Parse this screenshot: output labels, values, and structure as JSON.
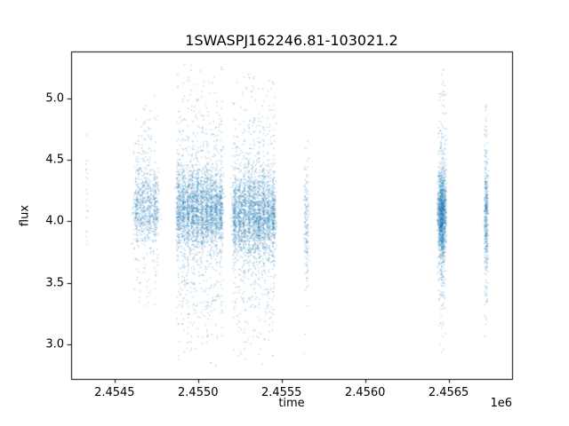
{
  "chart_data": {
    "type": "scatter",
    "title": "1SWASPJ162246.81-103021.2",
    "xlabel": "time",
    "ylabel": "flux",
    "x_offset_text": "1e6",
    "xlim": [
      2454240,
      2456880
    ],
    "ylim": [
      2.72,
      5.38
    ],
    "xticks": [
      2454500,
      2455000,
      2455500,
      2456000,
      2456500
    ],
    "xtick_labels": [
      "2.4545",
      "2.4550",
      "2.4555",
      "2.4560",
      "2.4565"
    ],
    "yticks": [
      3.0,
      3.5,
      4.0,
      4.5,
      5.0
    ],
    "ytick_labels": [
      "3.0",
      "3.5",
      "4.0",
      "4.5",
      "5.0"
    ],
    "grid": false,
    "legend": "none",
    "point_color": "#1f77b4",
    "point_alpha": 0.35,
    "point_size": 1.3,
    "clusters": [
      {
        "t": 2454335,
        "hw": 10,
        "n": 20,
        "cols": 0,
        "core_frac": 0.6,
        "mean": 4.15,
        "core_sigma": 0.22,
        "tail_sigma": 0.35,
        "fmin": 3.8,
        "fmax": 4.75
      },
      {
        "t": 2454690,
        "hw": 75,
        "n": 900,
        "cols": 4,
        "core_frac": 0.72,
        "mean": 4.12,
        "core_sigma": 0.14,
        "tail_sigma": 0.42,
        "fmin": 3.3,
        "fmax": 5.08
      },
      {
        "t": 2455010,
        "hw": 140,
        "n": 3200,
        "cols": 10,
        "core_frac": 0.7,
        "mean": 4.1,
        "core_sigma": 0.16,
        "tail_sigma": 0.55,
        "fmin": 2.82,
        "fmax": 5.28
      },
      {
        "t": 2455335,
        "hw": 130,
        "n": 3000,
        "cols": 9,
        "core_frac": 0.7,
        "mean": 4.05,
        "core_sigma": 0.17,
        "tail_sigma": 0.55,
        "fmin": 2.8,
        "fmax": 5.22
      },
      {
        "t": 2455650,
        "hw": 18,
        "n": 170,
        "cols": 0,
        "core_frac": 0.6,
        "mean": 4.0,
        "core_sigma": 0.22,
        "tail_sigma": 0.45,
        "fmin": 2.9,
        "fmax": 4.65
      },
      {
        "t": 2456460,
        "hw": 30,
        "n": 1500,
        "cols": 0,
        "core_frac": 0.72,
        "mean": 4.05,
        "core_sigma": 0.16,
        "tail_sigma": 0.5,
        "fmin": 2.88,
        "fmax": 5.26
      },
      {
        "t": 2456725,
        "hw": 14,
        "n": 430,
        "cols": 0,
        "core_frac": 0.65,
        "mean": 4.05,
        "core_sigma": 0.2,
        "tail_sigma": 0.5,
        "fmin": 3.0,
        "fmax": 5.05
      }
    ]
  }
}
